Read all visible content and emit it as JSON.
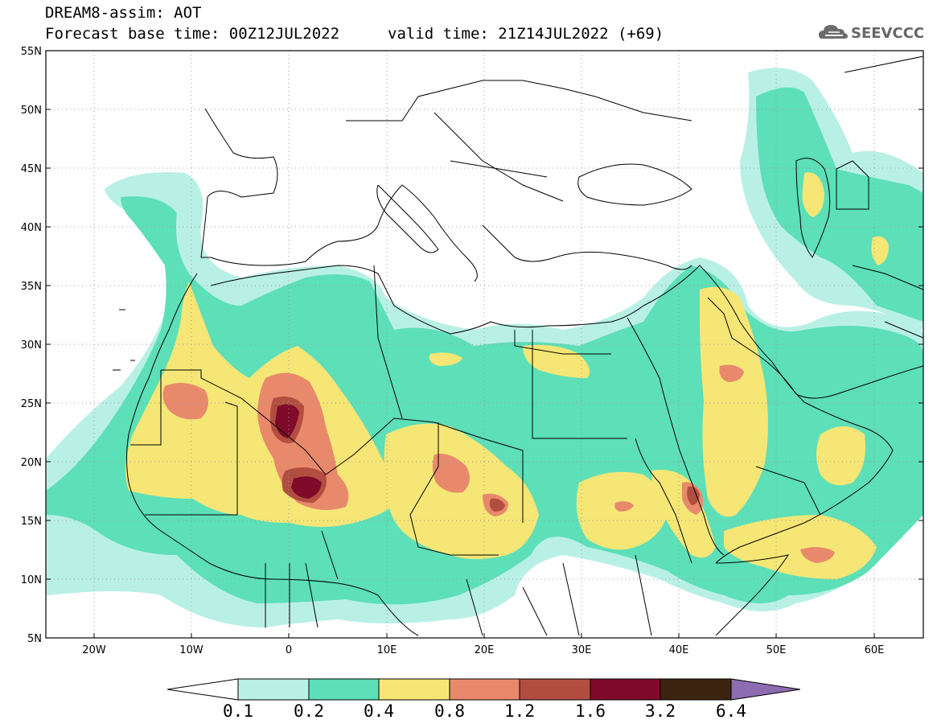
{
  "header": {
    "title": "DREAM8-assim: AOT",
    "base_time": "Forecast base time: 00Z12JUL2022",
    "valid_time": "valid time: 21Z14JUL2022 (+69)"
  },
  "logo": {
    "text": "SEEVCCC",
    "icon": "cloud-icon"
  },
  "map": {
    "lon_range": [
      -25,
      65
    ],
    "lat_range": [
      5,
      55
    ],
    "lat_ticks": [
      "55N",
      "50N",
      "45N",
      "40N",
      "35N",
      "30N",
      "25N",
      "20N",
      "15N",
      "10N",
      "5N"
    ],
    "lon_ticks": [
      "20W",
      "10W",
      "0",
      "10E",
      "20E",
      "30E",
      "40E",
      "50E",
      "60E"
    ]
  },
  "colorbar": {
    "labels": [
      "0.1",
      "0.2",
      "0.4",
      "0.8",
      "1.2",
      "1.6",
      "3.2",
      "6.4"
    ],
    "colors": [
      "#ffffff",
      "#b9f0e6",
      "#5ddfb8",
      "#f5e676",
      "#e8896c",
      "#b24e3f",
      "#7f0a2a",
      "#3c2410",
      "#8e6cb2"
    ]
  },
  "legend_colors": {
    "c01": "#b9f0e6",
    "c02": "#5ddfb8",
    "c04": "#f5e676",
    "c08": "#e8896c",
    "c12": "#b24e3f",
    "c16": "#7f0a2a"
  }
}
